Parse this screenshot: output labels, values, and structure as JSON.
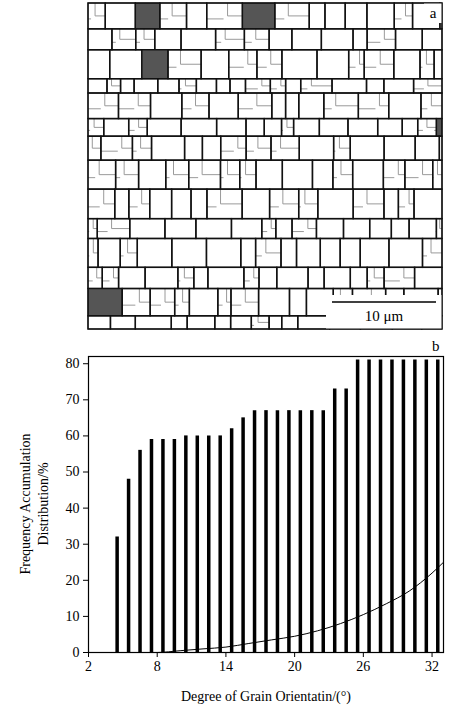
{
  "micrograph": {
    "panel_label": "a",
    "scale_bar": "10 μm"
  },
  "chart_data": {
    "type": "bar",
    "panel_label": "b",
    "x_label": "Degree of Grain Orientatin/(°)",
    "y_label": "Frequency Accumulation Distribution/%",
    "xlim": [
      2,
      33
    ],
    "xticks": [
      2,
      8,
      14,
      20,
      26,
      32
    ],
    "ylim": [
      0,
      82
    ],
    "yticks": [
      0,
      10,
      20,
      30,
      40,
      50,
      60,
      70,
      80
    ],
    "series": [
      {
        "type": "bar",
        "color": "#000000",
        "x": [
          4.5,
          5.5,
          6.5,
          7.5,
          8.5,
          9.5,
          10.5,
          11.5,
          12.5,
          13.5,
          14.5,
          15.5,
          16.5,
          17.5,
          18.5,
          19.5,
          20.5,
          21.5,
          22.5,
          23.5,
          24.5,
          25.5,
          26.5,
          27.5,
          28.5,
          29.5,
          30.5,
          31.5,
          32.5
        ],
        "values": [
          32,
          48,
          56,
          59,
          59,
          59,
          60,
          60,
          60,
          60,
          62,
          65,
          67,
          67,
          67,
          67,
          67,
          67,
          67,
          73,
          73,
          81,
          81,
          81,
          81,
          81,
          81,
          81,
          81
        ]
      },
      {
        "type": "line",
        "color": "#000000",
        "x": [
          2,
          4,
          6,
          8,
          10,
          12,
          14,
          16,
          18,
          20,
          22,
          24,
          26,
          28,
          30,
          32,
          33
        ],
        "values": [
          0,
          0,
          0,
          0,
          0.5,
          1,
          1.5,
          2.5,
          3.5,
          4.5,
          6,
          8,
          10.5,
          13.5,
          17,
          22,
          25
        ]
      }
    ]
  }
}
